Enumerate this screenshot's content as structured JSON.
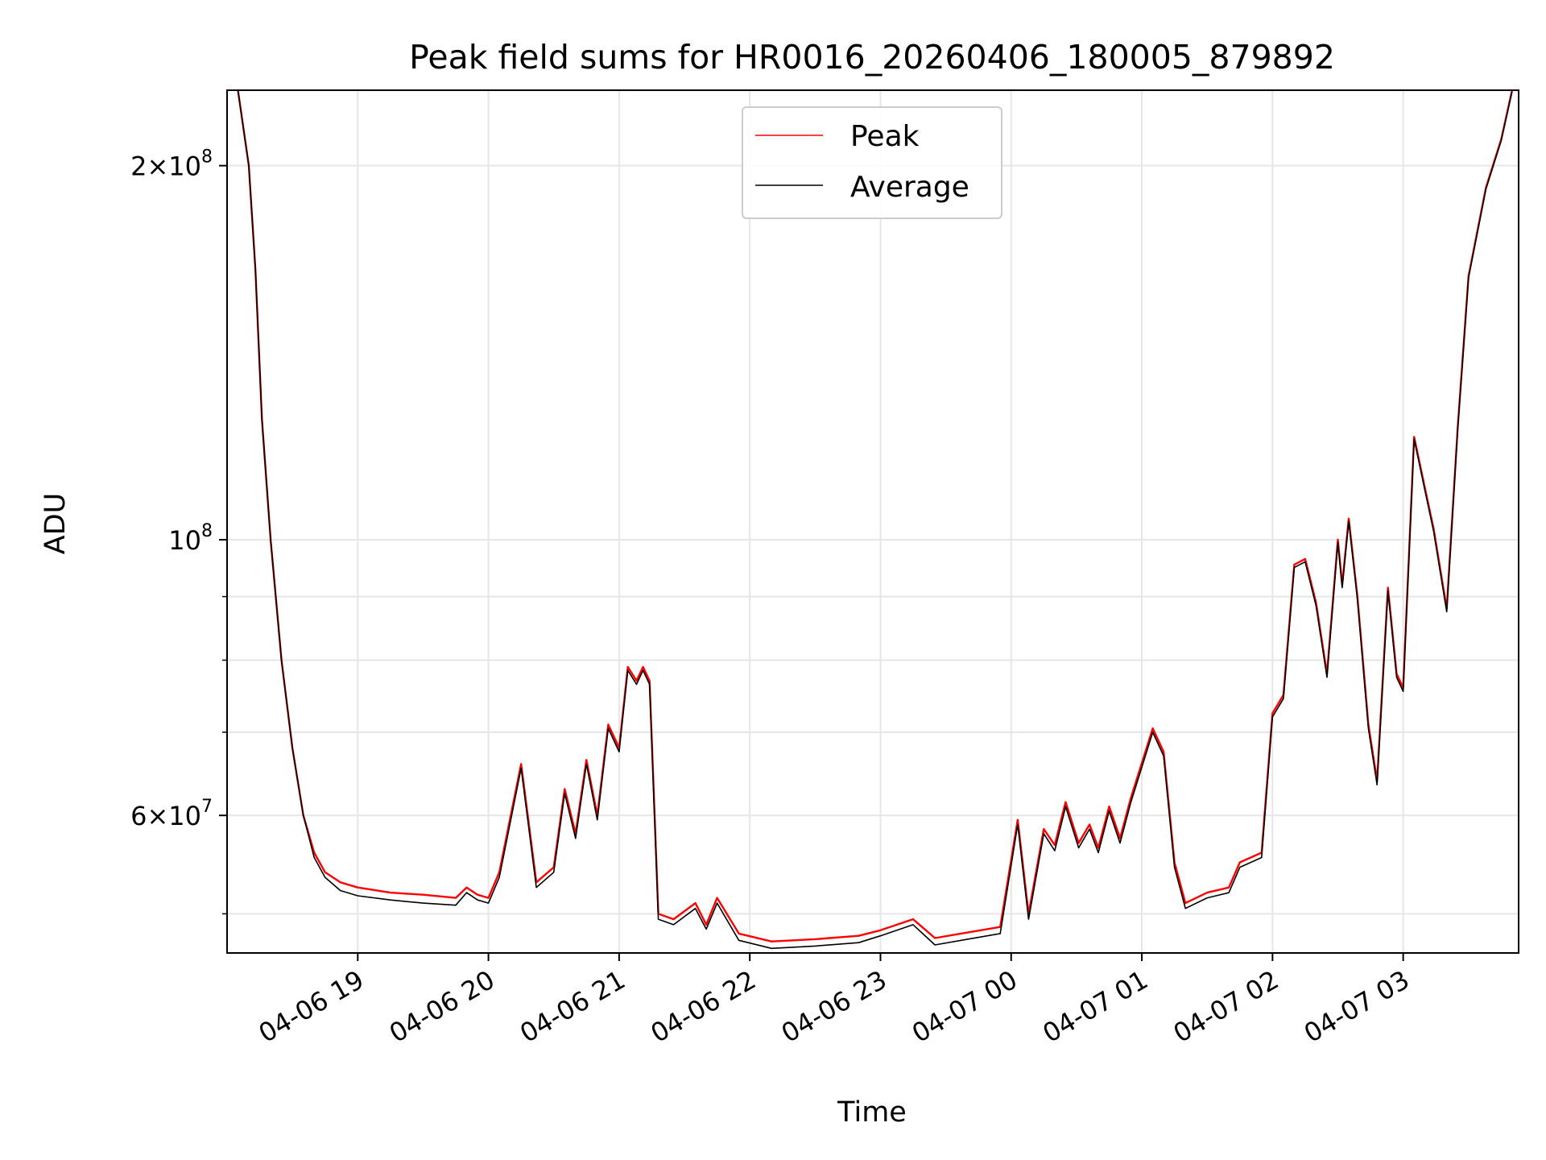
{
  "chart_data": {
    "type": "line",
    "title": "Peak field sums for HR0016_20260406_180005_879892",
    "xlabel": "Time",
    "ylabel": "ADU",
    "yscale": "log",
    "ylim": [
      46500000,
      230000000
    ],
    "xlim": [
      "2026-04-06 18:00",
      "2026-04-07 03:53"
    ],
    "grid": true,
    "legend": "upper center",
    "x_ticks": [
      "04-06 19",
      "04-06 20",
      "04-06 21",
      "04-06 22",
      "04-06 23",
      "04-07 00",
      "04-07 01",
      "04-07 02",
      "04-07 03"
    ],
    "x_tick_values": [
      "2026-04-06 19:00",
      "2026-04-06 20:00",
      "2026-04-06 21:00",
      "2026-04-06 22:00",
      "2026-04-06 23:00",
      "2026-04-07 00:00",
      "2026-04-07 01:00",
      "2026-04-07 02:00",
      "2026-04-07 03:00"
    ],
    "y_major_ticks": [
      {
        "value": 200000000,
        "mantissa": "2",
        "exp": "8"
      },
      {
        "value": 100000000,
        "mantissa": "",
        "exp": "8"
      },
      {
        "value": 60000000,
        "mantissa": "6",
        "exp": "7"
      }
    ],
    "y_minor_ticks": [
      50000000,
      70000000,
      80000000,
      90000000
    ],
    "colors": {
      "Peak": "#ff0000",
      "Average": "#000000",
      "grid": "#e6e6e6"
    },
    "x": [
      "2026-04-06 18:05",
      "2026-04-06 18:10",
      "2026-04-06 18:13",
      "2026-04-06 18:16",
      "2026-04-06 18:20",
      "2026-04-06 18:25",
      "2026-04-06 18:30",
      "2026-04-06 18:35",
      "2026-04-06 18:40",
      "2026-04-06 18:45",
      "2026-04-06 18:52",
      "2026-04-06 19:00",
      "2026-04-06 19:15",
      "2026-04-06 19:30",
      "2026-04-06 19:45",
      "2026-04-06 19:50",
      "2026-04-06 19:55",
      "2026-04-06 20:00",
      "2026-04-06 20:05",
      "2026-04-06 20:15",
      "2026-04-06 20:22",
      "2026-04-06 20:30",
      "2026-04-06 20:35",
      "2026-04-06 20:40",
      "2026-04-06 20:45",
      "2026-04-06 20:50",
      "2026-04-06 20:55",
      "2026-04-06 21:00",
      "2026-04-06 21:04",
      "2026-04-06 21:08",
      "2026-04-06 21:11",
      "2026-04-06 21:14",
      "2026-04-06 21:18",
      "2026-04-06 21:25",
      "2026-04-06 21:35",
      "2026-04-06 21:40",
      "2026-04-06 21:45",
      "2026-04-06 21:55",
      "2026-04-06 22:10",
      "2026-04-06 22:30",
      "2026-04-06 22:50",
      "2026-04-06 23:00",
      "2026-04-06 23:15",
      "2026-04-06 23:25",
      "2026-04-06 23:40",
      "2026-04-06 23:55",
      "2026-04-07 00:03",
      "2026-04-07 00:08",
      "2026-04-07 00:15",
      "2026-04-07 00:20",
      "2026-04-07 00:25",
      "2026-04-07 00:31",
      "2026-04-07 00:36",
      "2026-04-07 00:40",
      "2026-04-07 00:45",
      "2026-04-07 00:50",
      "2026-04-07 00:55",
      "2026-04-07 01:05",
      "2026-04-07 01:10",
      "2026-04-07 01:15",
      "2026-04-07 01:20",
      "2026-04-07 01:30",
      "2026-04-07 01:40",
      "2026-04-07 01:45",
      "2026-04-07 01:55",
      "2026-04-07 02:00",
      "2026-04-07 02:05",
      "2026-04-07 02:10",
      "2026-04-07 02:15",
      "2026-04-07 02:20",
      "2026-04-07 02:25",
      "2026-04-07 02:30",
      "2026-04-07 02:32",
      "2026-04-07 02:35",
      "2026-04-07 02:39",
      "2026-04-07 02:44",
      "2026-04-07 02:48",
      "2026-04-07 02:53",
      "2026-04-07 02:57",
      "2026-04-07 03:00",
      "2026-04-07 03:05",
      "2026-04-07 03:10",
      "2026-04-07 03:14",
      "2026-04-07 03:20",
      "2026-04-07 03:25",
      "2026-04-07 03:30",
      "2026-04-07 03:38",
      "2026-04-07 03:45",
      "2026-04-07 03:50"
    ],
    "series": [
      {
        "name": "Peak",
        "values": [
          230000000,
          200000000,
          165000000,
          125000000,
          100000000,
          80000000,
          68000000,
          60000000,
          56000000,
          54000000,
          53000000,
          52500000,
          52000000,
          51800000,
          51500000,
          52500000,
          51800000,
          51500000,
          54000000,
          66000000,
          53000000,
          54500000,
          63000000,
          58000000,
          66500000,
          60000000,
          71000000,
          68000000,
          79000000,
          77000000,
          79000000,
          77000000,
          50000000,
          49500000,
          51000000,
          49000000,
          51500000,
          48200000,
          47500000,
          47700000,
          48000000,
          48500000,
          49500000,
          47800000,
          48300000,
          48800000,
          59500000,
          50000000,
          58500000,
          56800000,
          61500000,
          57000000,
          59000000,
          56500000,
          61000000,
          57500000,
          62000000,
          70500000,
          67500000,
          55000000,
          51000000,
          52000000,
          52500000,
          55000000,
          56000000,
          72500000,
          75000000,
          95500000,
          96500000,
          89000000,
          78000000,
          100000000,
          92000000,
          104000000,
          90000000,
          71000000,
          64000000,
          91500000,
          78000000,
          76000000,
          121000000,
          110000000,
          102000000,
          88000000,
          123000000,
          163000000,
          192000000,
          210000000,
          230000000
        ]
      },
      {
        "name": "Average",
        "values": [
          230000000,
          200000000,
          165000000,
          125000000,
          100000000,
          80000000,
          68000000,
          60000000,
          55500000,
          53500000,
          52200000,
          51700000,
          51300000,
          51000000,
          50800000,
          52000000,
          51300000,
          51000000,
          53500000,
          65500000,
          52500000,
          54000000,
          62500000,
          57500000,
          66000000,
          59500000,
          70500000,
          67500000,
          78500000,
          76500000,
          78500000,
          76500000,
          49500000,
          49000000,
          50500000,
          48600000,
          51000000,
          47600000,
          46900000,
          47100000,
          47400000,
          48000000,
          49000000,
          47200000,
          47700000,
          48200000,
          59000000,
          49500000,
          58000000,
          56200000,
          61000000,
          56500000,
          58500000,
          56000000,
          60500000,
          57000000,
          61500000,
          70000000,
          67000000,
          54500000,
          50500000,
          51500000,
          52000000,
          54500000,
          55500000,
          72000000,
          74500000,
          95000000,
          96000000,
          88500000,
          77500000,
          99500000,
          91500000,
          103500000,
          89500000,
          70500000,
          63500000,
          91000000,
          77500000,
          75500000,
          120500000,
          109500000,
          101500000,
          87500000,
          122500000,
          162500000,
          191500000,
          209500000,
          229500000
        ]
      }
    ]
  }
}
